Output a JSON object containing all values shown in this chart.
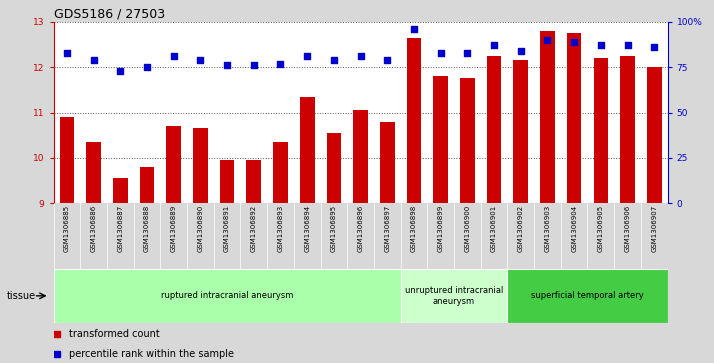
{
  "title": "GDS5186 / 27503",
  "samples": [
    "GSM1306885",
    "GSM1306886",
    "GSM1306887",
    "GSM1306888",
    "GSM1306889",
    "GSM1306890",
    "GSM1306891",
    "GSM1306892",
    "GSM1306893",
    "GSM1306894",
    "GSM1306895",
    "GSM1306896",
    "GSM1306897",
    "GSM1306898",
    "GSM1306899",
    "GSM1306900",
    "GSM1306901",
    "GSM1306902",
    "GSM1306903",
    "GSM1306904",
    "GSM1306905",
    "GSM1306906",
    "GSM1306907"
  ],
  "bar_values": [
    10.9,
    10.35,
    9.55,
    9.8,
    10.7,
    10.65,
    9.95,
    9.95,
    10.35,
    11.35,
    10.55,
    11.05,
    10.8,
    12.65,
    11.8,
    11.75,
    12.25,
    12.15,
    12.8,
    12.75,
    12.2,
    12.25,
    12.0
  ],
  "scatter_values": [
    83,
    79,
    73,
    75,
    81,
    79,
    76,
    76,
    77,
    81,
    79,
    81,
    79,
    96,
    83,
    83,
    87,
    84,
    90,
    89,
    87,
    87,
    86
  ],
  "ylim": [
    9,
    13
  ],
  "yticks": [
    9,
    10,
    11,
    12,
    13
  ],
  "right_ylim": [
    0,
    100
  ],
  "right_yticks": [
    0,
    25,
    50,
    75,
    100
  ],
  "right_yticklabels": [
    "0",
    "25",
    "50",
    "75",
    "100%"
  ],
  "bar_color": "#cc0000",
  "scatter_color": "#0000cc",
  "bar_bottom": 9,
  "tissue_groups": [
    {
      "label": "ruptured intracranial aneurysm",
      "start": 0,
      "end": 13,
      "color": "#aaffaa"
    },
    {
      "label": "unruptured intracranial\naneurysm",
      "start": 13,
      "end": 17,
      "color": "#ccffcc"
    },
    {
      "label": "superficial temporal artery",
      "start": 17,
      "end": 23,
      "color": "#44cc44"
    }
  ],
  "legend_items": [
    {
      "label": "transformed count",
      "color": "#cc0000"
    },
    {
      "label": "percentile rank within the sample",
      "color": "#0000cc"
    }
  ],
  "tissue_label": "tissue",
  "background_color": "#d8d8d8",
  "xtick_bg_color": "#c8c8c8",
  "plot_bg_color": "#ffffff",
  "dotted_line_color": "#555555",
  "title_fontsize": 9,
  "tick_fontsize": 6.5,
  "axis_color_left": "#cc0000",
  "axis_color_right": "#0000cc"
}
